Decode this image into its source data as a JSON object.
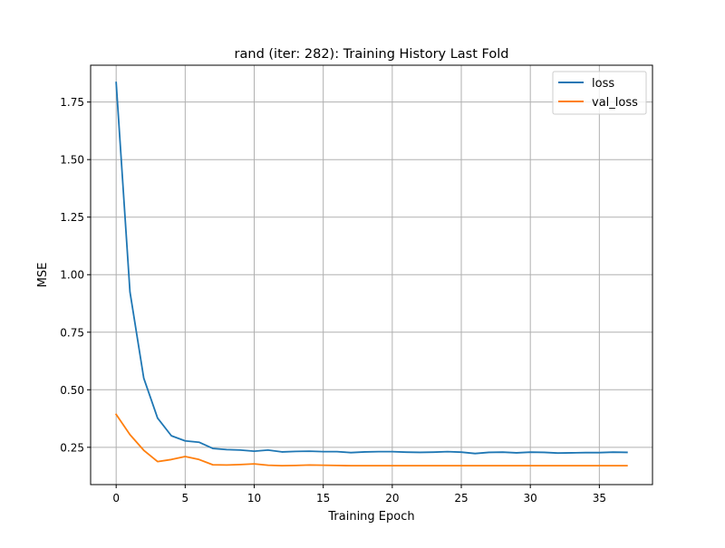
{
  "chart_data": {
    "type": "line",
    "title": "rand (iter: 282): Training History Last Fold",
    "xlabel": "Training Epoch",
    "ylabel": "MSE",
    "xlim": [
      -1.85,
      38.85
    ],
    "ylim": [
      0.088,
      1.91
    ],
    "grid": true,
    "legend_position": "top-right",
    "xticks": [
      0,
      5,
      10,
      15,
      20,
      25,
      30,
      35
    ],
    "xtick_labels": [
      "0",
      "5",
      "10",
      "15",
      "20",
      "25",
      "30",
      "35"
    ],
    "yticks": [
      0.25,
      0.5,
      0.75,
      1.0,
      1.25,
      1.5,
      1.75
    ],
    "ytick_labels": [
      "0.25",
      "0.50",
      "0.75",
      "1.00",
      "1.25",
      "1.50",
      "1.75"
    ],
    "x": [
      0,
      1,
      2,
      3,
      4,
      5,
      6,
      7,
      8,
      9,
      10,
      11,
      12,
      13,
      14,
      15,
      16,
      17,
      18,
      19,
      20,
      21,
      22,
      23,
      24,
      25,
      26,
      27,
      28,
      29,
      30,
      31,
      32,
      33,
      34,
      35,
      36,
      37
    ],
    "series": [
      {
        "name": "loss",
        "color": "#1f77b4",
        "values": [
          1.835,
          0.925,
          0.55,
          0.377,
          0.3,
          0.278,
          0.272,
          0.245,
          0.24,
          0.238,
          0.233,
          0.238,
          0.23,
          0.232,
          0.233,
          0.231,
          0.231,
          0.227,
          0.23,
          0.231,
          0.231,
          0.229,
          0.228,
          0.229,
          0.231,
          0.229,
          0.223,
          0.228,
          0.229,
          0.226,
          0.229,
          0.228,
          0.225,
          0.226,
          0.227,
          0.227,
          0.229,
          0.228
        ]
      },
      {
        "name": "val_loss",
        "color": "#ff7f0e",
        "values": [
          0.393,
          0.305,
          0.237,
          0.188,
          0.197,
          0.21,
          0.197,
          0.174,
          0.173,
          0.175,
          0.178,
          0.172,
          0.17,
          0.171,
          0.173,
          0.172,
          0.171,
          0.17,
          0.17,
          0.17,
          0.17,
          0.17,
          0.17,
          0.17,
          0.17,
          0.17,
          0.17,
          0.17,
          0.17,
          0.17,
          0.17,
          0.17,
          0.17,
          0.17,
          0.17,
          0.17,
          0.17,
          0.17
        ]
      }
    ]
  }
}
